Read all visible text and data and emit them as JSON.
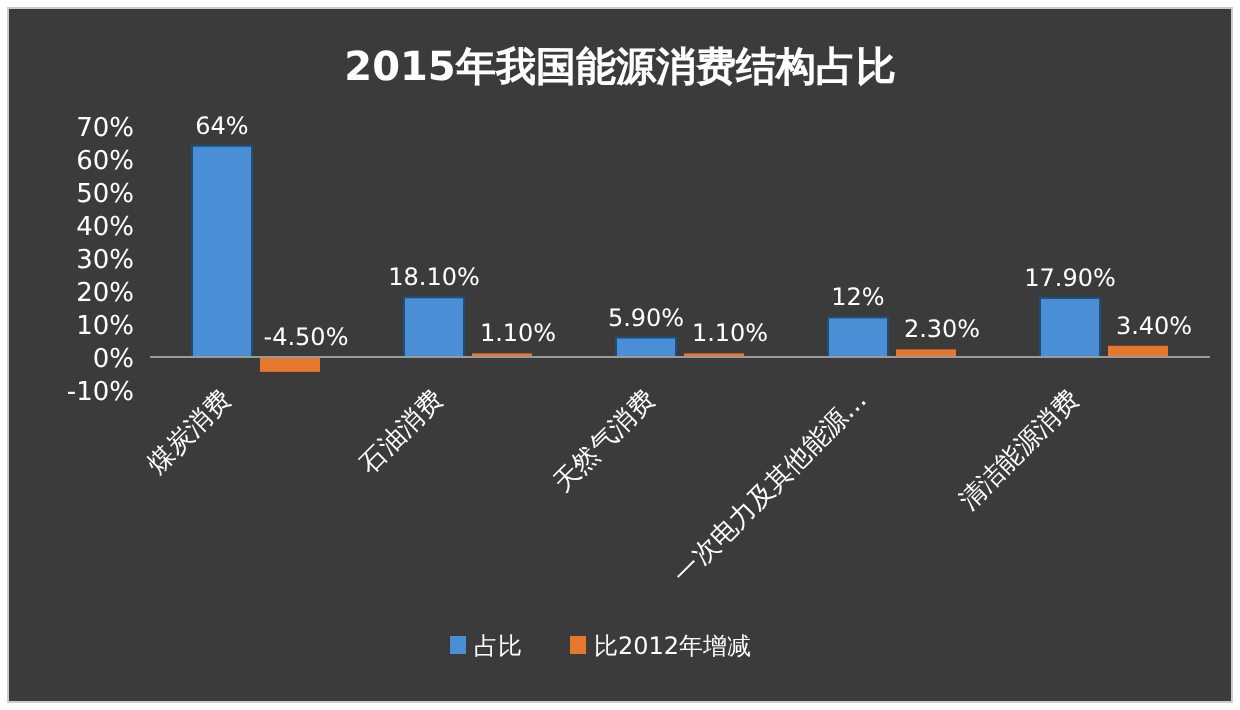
{
  "chart_data": {
    "type": "bar",
    "title": "2015年我国能源消费结构占比",
    "categories": [
      "煤炭消费",
      "石油消费",
      "天然气消费",
      "一次电力及其他能源…",
      "清洁能源消费"
    ],
    "series": [
      {
        "name": "占比",
        "color": "#4a8fd6",
        "values": [
          64,
          18.1,
          5.9,
          12,
          17.9
        ],
        "value_labels": [
          "64%",
          "18.10%",
          "5.90%",
          "12%",
          "17.90%"
        ]
      },
      {
        "name": "比2012年增减",
        "color": "#e8772e",
        "values": [
          -4.5,
          1.1,
          1.1,
          2.3,
          3.4
        ],
        "value_labels": [
          "-4.50%",
          "1.10%",
          "1.10%",
          "2.30%",
          "3.40%"
        ]
      }
    ],
    "ylim": [
      -10,
      70
    ],
    "yticks": [
      {
        "value": -10,
        "label": "-10%"
      },
      {
        "value": 0,
        "label": "0%"
      },
      {
        "value": 10,
        "label": "10%"
      },
      {
        "value": 20,
        "label": "20%"
      },
      {
        "value": 30,
        "label": "30%"
      },
      {
        "value": 40,
        "label": "40%"
      },
      {
        "value": 50,
        "label": "50%"
      },
      {
        "value": 60,
        "label": "60%"
      },
      {
        "value": 70,
        "label": "70%"
      }
    ],
    "legend": "bottom"
  }
}
